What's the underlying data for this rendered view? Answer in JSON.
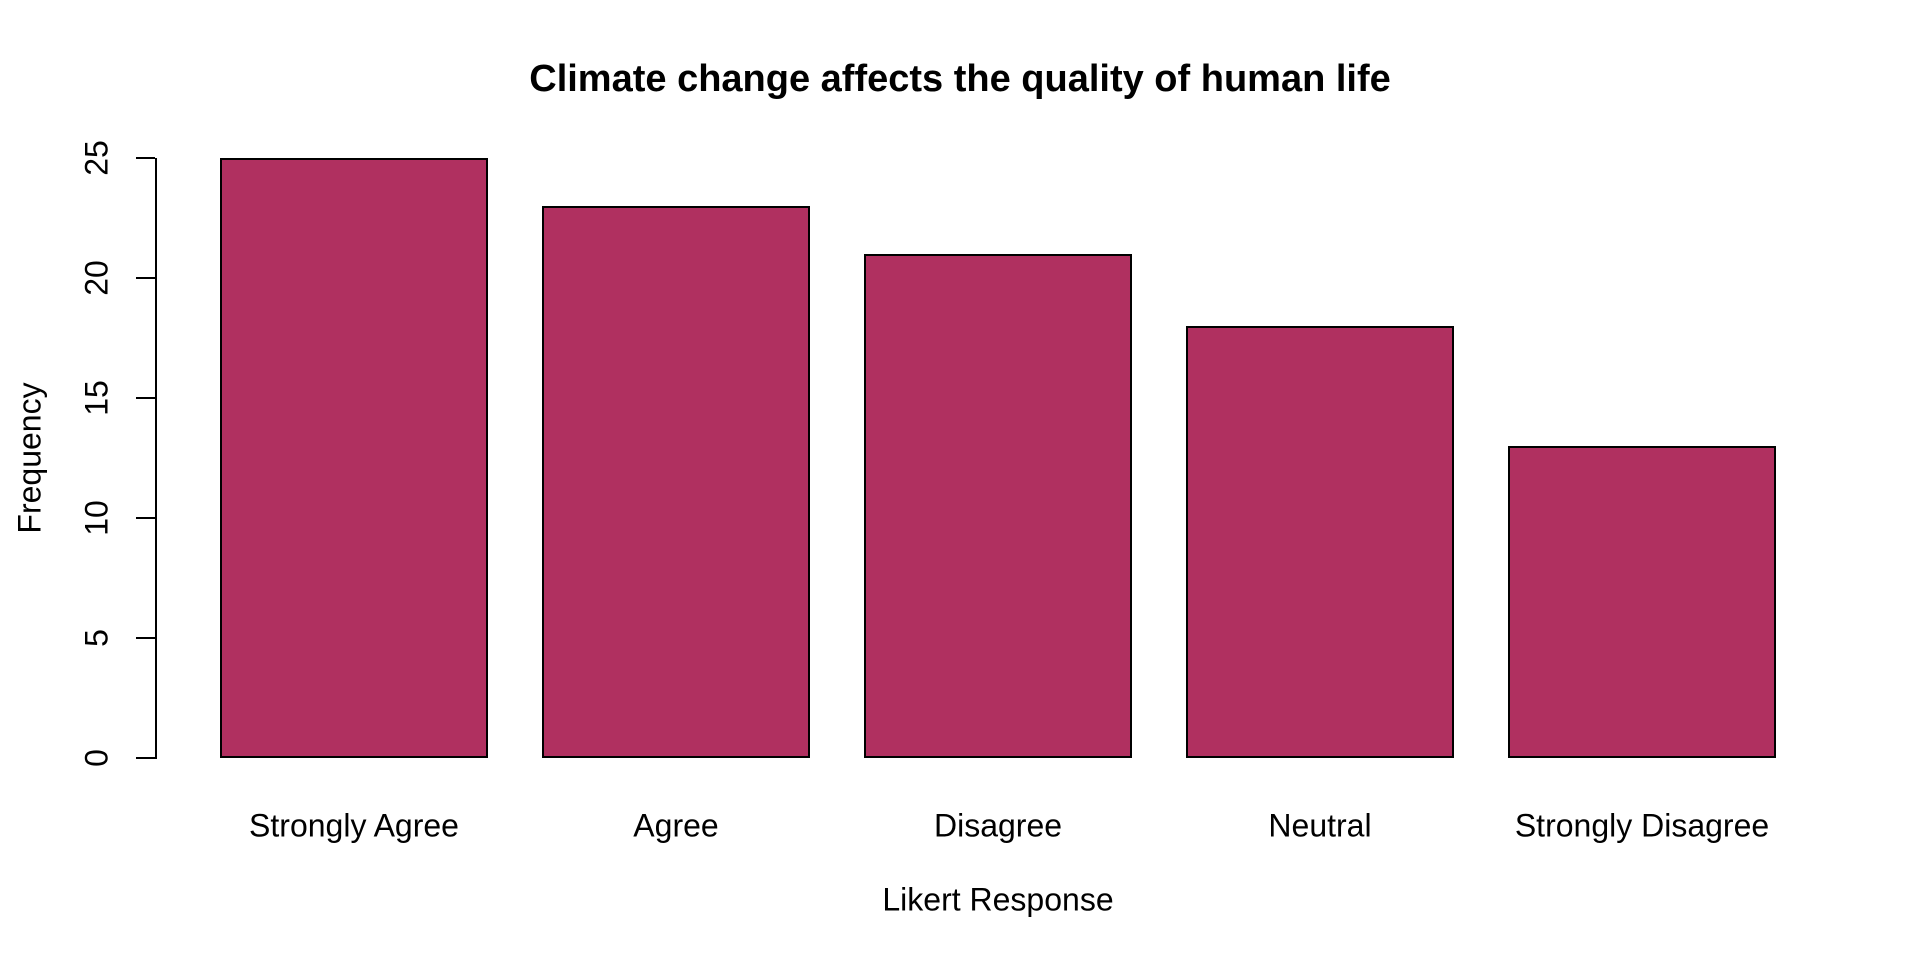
{
  "page": {
    "background": "#ffffff"
  },
  "chart_data": {
    "type": "bar",
    "title": "Climate change affects the quality of human life",
    "xlabel": "Likert Response",
    "ylabel": "Frequency",
    "categories": [
      "Strongly Agree",
      "Agree",
      "Disagree",
      "Neutral",
      "Strongly Disagree"
    ],
    "values": [
      25,
      23,
      21,
      18,
      13
    ],
    "ylim": [
      0,
      25
    ],
    "yticks": [
      0,
      5,
      10,
      15,
      20,
      25
    ],
    "grid": false,
    "legend": "none",
    "y_tick_label_rotation_deg": -90,
    "bar_color": "#B03060",
    "bar_border_color": "#000000",
    "axis_color": "#000000",
    "text_color": "#000000",
    "background_color": "#ffffff"
  }
}
